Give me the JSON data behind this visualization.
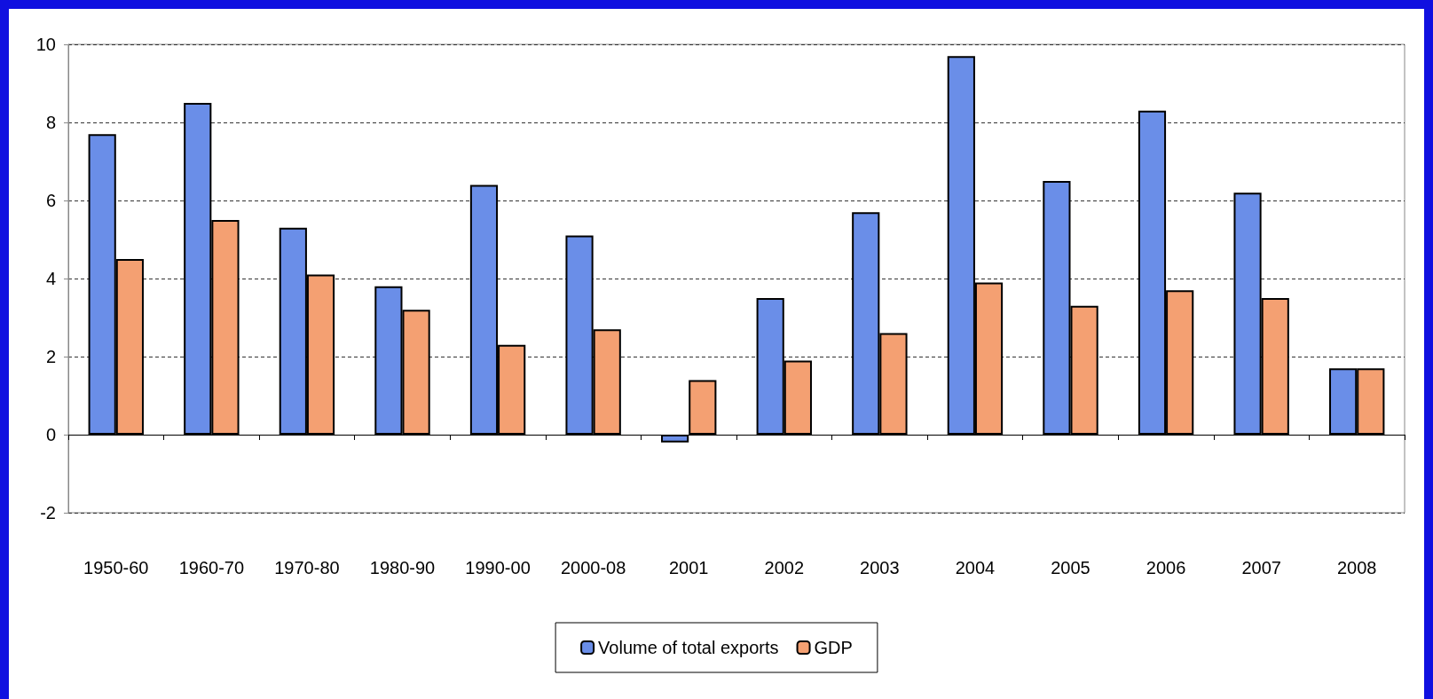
{
  "chart_data": {
    "type": "bar",
    "categories": [
      "1950-60",
      "1960-70",
      "1970-80",
      "1980-90",
      "1990-00",
      "2000-08",
      "2001",
      "2002",
      "2003",
      "2004",
      "2005",
      "2006",
      "2007",
      "2008"
    ],
    "series": [
      {
        "name": "Volume of total exports",
        "color": "#6a8ee8",
        "values": [
          7.7,
          8.5,
          5.3,
          3.8,
          6.4,
          5.1,
          -0.2,
          3.5,
          5.7,
          9.7,
          6.5,
          8.3,
          6.2,
          1.7
        ]
      },
      {
        "name": "GDP",
        "color": "#f4a072",
        "values": [
          4.5,
          5.5,
          4.1,
          3.2,
          2.3,
          2.7,
          1.4,
          1.9,
          2.6,
          3.9,
          3.3,
          3.7,
          3.5,
          1.7
        ]
      }
    ],
    "ylim": [
      -2,
      10
    ],
    "yticks": [
      -2,
      0,
      2,
      4,
      6,
      8,
      10
    ],
    "grid": "y",
    "legend": "bottom"
  }
}
